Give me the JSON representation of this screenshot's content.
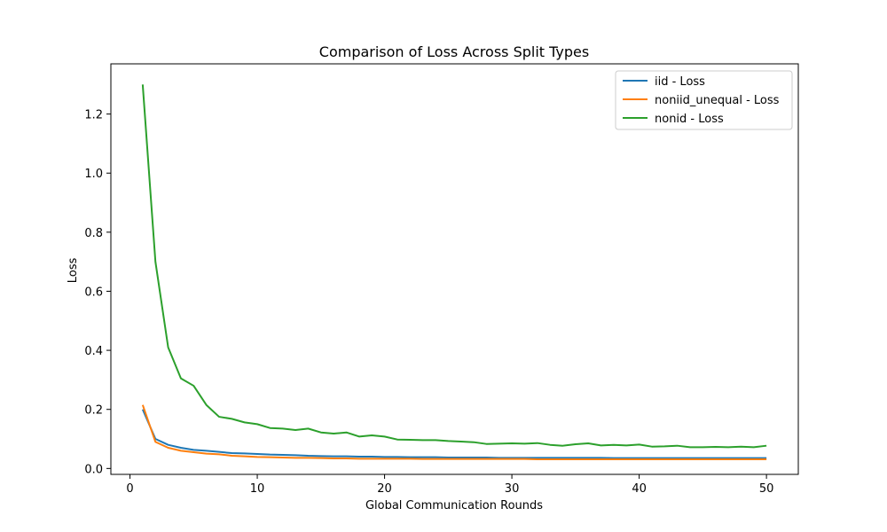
{
  "chart_data": {
    "type": "line",
    "title": "Comparison of Loss Across Split Types",
    "xlabel": "Global Communication Rounds",
    "ylabel": "Loss",
    "xlim": [
      -1.5,
      52.5
    ],
    "ylim": [
      -0.02,
      1.37
    ],
    "xticks": [
      0,
      10,
      20,
      30,
      40,
      50
    ],
    "yticks": [
      0.0,
      0.2,
      0.4,
      0.6,
      0.8,
      1.0,
      1.2
    ],
    "grid": false,
    "legend_position": "top-right",
    "x": [
      1,
      2,
      3,
      4,
      5,
      6,
      7,
      8,
      9,
      10,
      11,
      12,
      13,
      14,
      15,
      16,
      17,
      18,
      19,
      20,
      21,
      22,
      23,
      24,
      25,
      26,
      27,
      28,
      29,
      30,
      31,
      32,
      33,
      34,
      35,
      36,
      37,
      38,
      39,
      40,
      41,
      42,
      43,
      44,
      45,
      46,
      47,
      48,
      49,
      50
    ],
    "series": [
      {
        "name": "iid - Loss",
        "color": "#1f77b4",
        "values": [
          0.2,
          0.1,
          0.08,
          0.07,
          0.063,
          0.06,
          0.056,
          0.052,
          0.051,
          0.049,
          0.047,
          0.046,
          0.045,
          0.043,
          0.042,
          0.041,
          0.041,
          0.04,
          0.04,
          0.039,
          0.039,
          0.038,
          0.038,
          0.038,
          0.037,
          0.037,
          0.037,
          0.037,
          0.036,
          0.036,
          0.036,
          0.036,
          0.036,
          0.036,
          0.036,
          0.036,
          0.036,
          0.035,
          0.035,
          0.035,
          0.035,
          0.035,
          0.035,
          0.035,
          0.035,
          0.035,
          0.035,
          0.035,
          0.035,
          0.035
        ]
      },
      {
        "name": "noniid_unequal - Loss",
        "color": "#ff7f0e",
        "values": [
          0.215,
          0.09,
          0.07,
          0.06,
          0.055,
          0.05,
          0.048,
          0.043,
          0.041,
          0.039,
          0.038,
          0.037,
          0.036,
          0.036,
          0.035,
          0.034,
          0.034,
          0.033,
          0.033,
          0.033,
          0.033,
          0.033,
          0.032,
          0.032,
          0.032,
          0.032,
          0.032,
          0.032,
          0.032,
          0.032,
          0.032,
          0.031,
          0.031,
          0.031,
          0.031,
          0.031,
          0.031,
          0.031,
          0.031,
          0.031,
          0.031,
          0.031,
          0.031,
          0.031,
          0.031,
          0.031,
          0.031,
          0.031,
          0.031,
          0.031
        ]
      },
      {
        "name": "nonid - Loss",
        "color": "#2ca02c",
        "values": [
          1.3,
          0.7,
          0.41,
          0.305,
          0.28,
          0.215,
          0.175,
          0.168,
          0.156,
          0.15,
          0.137,
          0.135,
          0.13,
          0.135,
          0.122,
          0.118,
          0.122,
          0.108,
          0.112,
          0.108,
          0.098,
          0.097,
          0.096,
          0.096,
          0.093,
          0.091,
          0.089,
          0.083,
          0.084,
          0.085,
          0.084,
          0.086,
          0.08,
          0.077,
          0.082,
          0.085,
          0.078,
          0.08,
          0.078,
          0.081,
          0.074,
          0.075,
          0.077,
          0.072,
          0.072,
          0.073,
          0.072,
          0.074,
          0.072,
          0.077
        ]
      }
    ]
  }
}
